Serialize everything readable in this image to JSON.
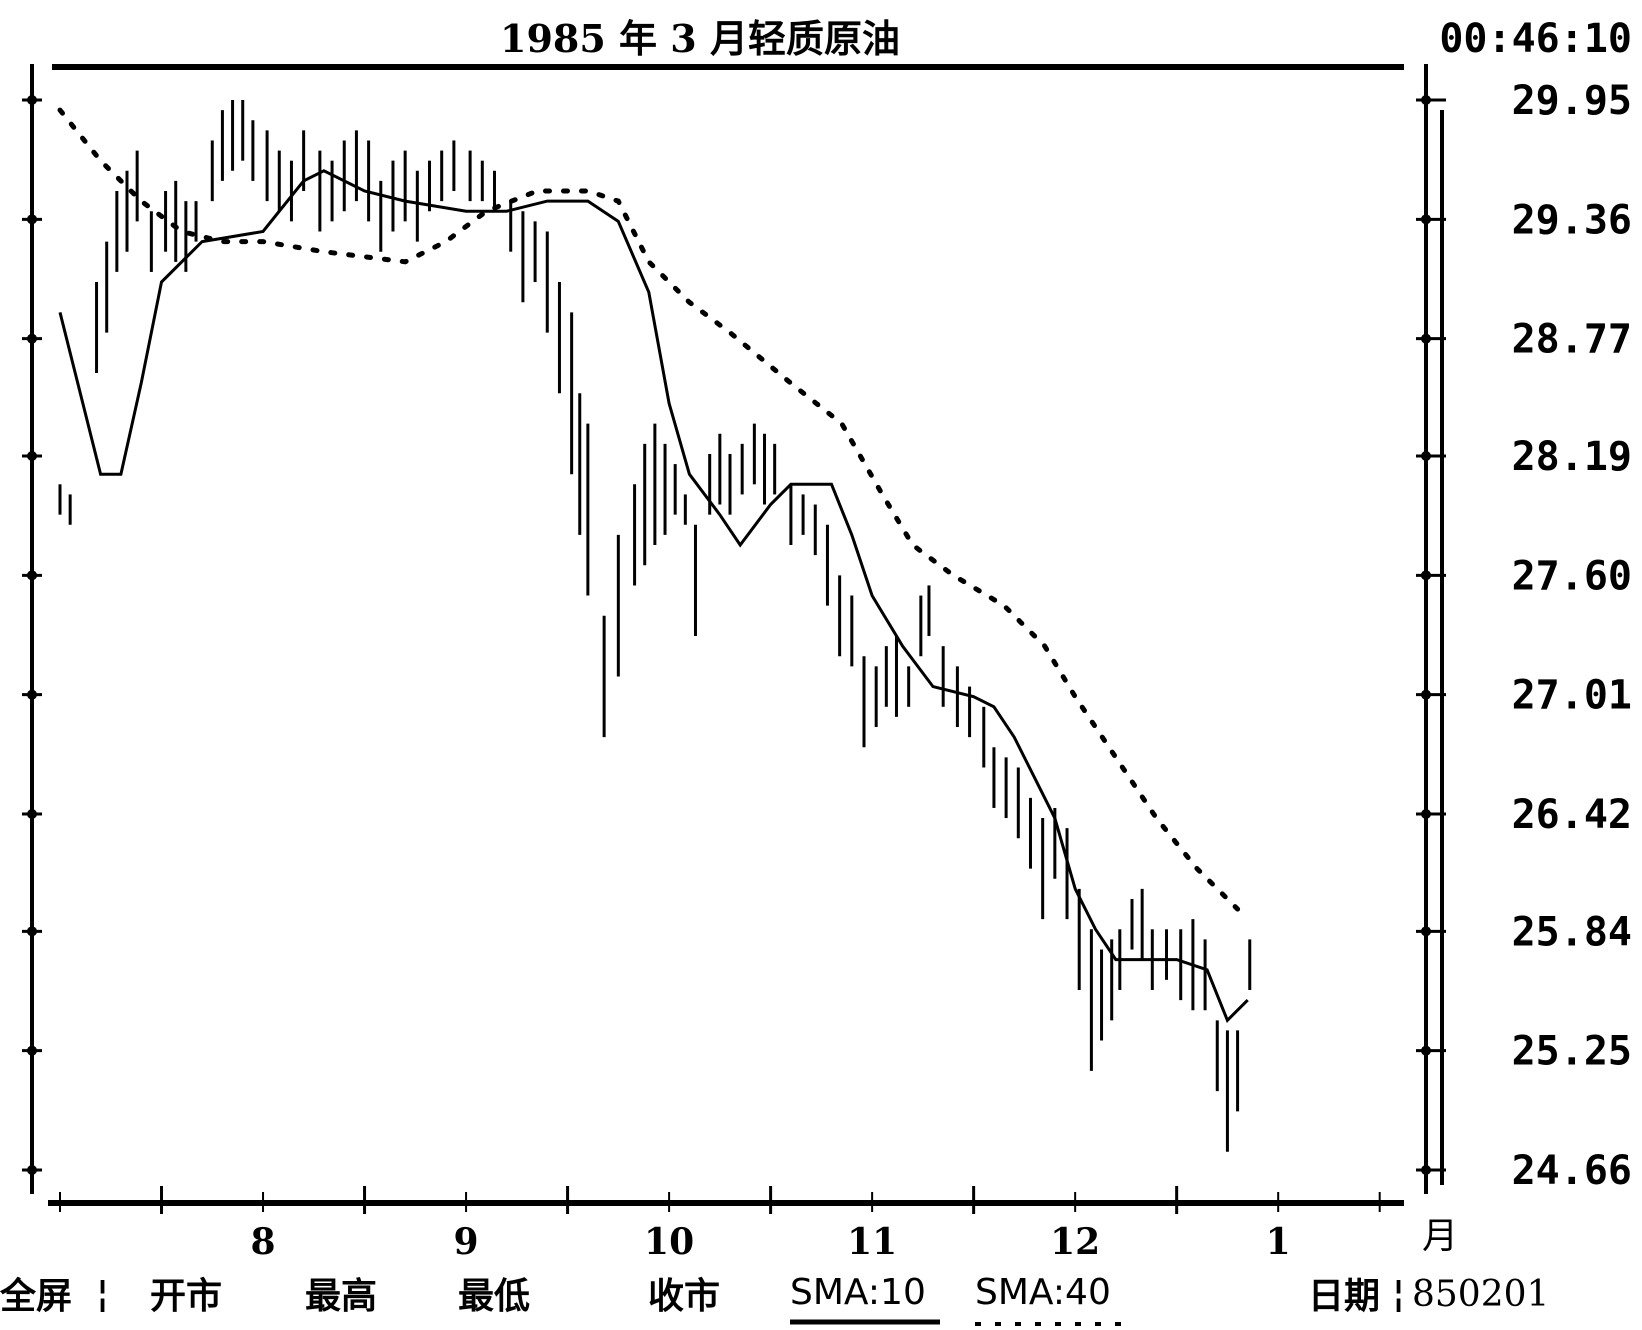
{
  "header": {
    "title": "1985 年 3 月轻质原油",
    "clock": "00:46:10"
  },
  "footer": {
    "fullscreen": "全屏",
    "separator": "¦",
    "open": "开市",
    "high": "最高",
    "low": "最低",
    "close": "收市",
    "sma10": "SMA:10",
    "sma40": "SMA:40",
    "date_label": "日期",
    "date_value": "850201"
  },
  "chart_data": {
    "type": "line",
    "title": "1985 年 3 月轻质原油",
    "x_unit": "月",
    "x_ticks": [
      "8",
      "9",
      "10",
      "11",
      "12",
      "1"
    ],
    "y_ticks": [
      "29.95",
      "29.36",
      "28.77",
      "28.19",
      "27.60",
      "27.01",
      "26.42",
      "25.84",
      "25.25",
      "24.66"
    ],
    "ylim": [
      24.66,
      29.95
    ],
    "x_range_months": [
      7.0,
      13.6
    ],
    "series": [
      {
        "name": "SMA:10",
        "style": "solid",
        "points": [
          [
            7.0,
            28.9
          ],
          [
            7.1,
            28.5
          ],
          [
            7.2,
            28.1
          ],
          [
            7.3,
            28.1
          ],
          [
            7.4,
            28.55
          ],
          [
            7.5,
            29.05
          ],
          [
            7.7,
            29.25
          ],
          [
            8.0,
            29.3
          ],
          [
            8.2,
            29.55
          ],
          [
            8.3,
            29.6
          ],
          [
            8.5,
            29.5
          ],
          [
            8.7,
            29.45
          ],
          [
            9.0,
            29.4
          ],
          [
            9.2,
            29.4
          ],
          [
            9.4,
            29.45
          ],
          [
            9.6,
            29.45
          ],
          [
            9.75,
            29.35
          ],
          [
            9.9,
            29.0
          ],
          [
            10.0,
            28.45
          ],
          [
            10.1,
            28.1
          ],
          [
            10.25,
            27.9
          ],
          [
            10.35,
            27.75
          ],
          [
            10.5,
            27.95
          ],
          [
            10.6,
            28.05
          ],
          [
            10.8,
            28.05
          ],
          [
            10.9,
            27.8
          ],
          [
            11.0,
            27.5
          ],
          [
            11.15,
            27.25
          ],
          [
            11.3,
            27.05
          ],
          [
            11.5,
            27.0
          ],
          [
            11.6,
            26.95
          ],
          [
            11.7,
            26.8
          ],
          [
            11.8,
            26.6
          ],
          [
            11.9,
            26.4
          ],
          [
            12.0,
            26.05
          ],
          [
            12.1,
            25.85
          ],
          [
            12.2,
            25.7
          ],
          [
            12.3,
            25.7
          ],
          [
            12.5,
            25.7
          ],
          [
            12.65,
            25.65
          ],
          [
            12.75,
            25.4
          ],
          [
            12.85,
            25.5
          ]
        ]
      },
      {
        "name": "SMA:40",
        "style": "dotted",
        "points": [
          [
            7.0,
            29.9
          ],
          [
            7.2,
            29.65
          ],
          [
            7.4,
            29.45
          ],
          [
            7.6,
            29.3
          ],
          [
            7.8,
            29.25
          ],
          [
            8.0,
            29.25
          ],
          [
            8.3,
            29.2
          ],
          [
            8.7,
            29.15
          ],
          [
            8.9,
            29.25
          ],
          [
            9.1,
            29.4
          ],
          [
            9.35,
            29.5
          ],
          [
            9.6,
            29.5
          ],
          [
            9.75,
            29.45
          ],
          [
            9.9,
            29.15
          ],
          [
            10.1,
            28.95
          ],
          [
            10.3,
            28.8
          ],
          [
            10.6,
            28.55
          ],
          [
            10.85,
            28.35
          ],
          [
            11.05,
            28.0
          ],
          [
            11.2,
            27.75
          ],
          [
            11.4,
            27.6
          ],
          [
            11.65,
            27.45
          ],
          [
            11.85,
            27.25
          ],
          [
            12.0,
            27.0
          ],
          [
            12.2,
            26.7
          ],
          [
            12.4,
            26.4
          ],
          [
            12.6,
            26.15
          ],
          [
            12.8,
            25.95
          ]
        ]
      }
    ],
    "bars": [
      [
        7.0,
        27.9,
        28.05
      ],
      [
        7.05,
        27.85,
        28.0
      ],
      [
        7.18,
        28.6,
        29.05
      ],
      [
        7.23,
        28.8,
        29.25
      ],
      [
        7.28,
        29.1,
        29.5
      ],
      [
        7.33,
        29.2,
        29.6
      ],
      [
        7.38,
        29.35,
        29.7
      ],
      [
        7.45,
        29.1,
        29.4
      ],
      [
        7.52,
        29.2,
        29.5
      ],
      [
        7.57,
        29.15,
        29.55
      ],
      [
        7.62,
        29.1,
        29.45
      ],
      [
        7.67,
        29.25,
        29.45
      ],
      [
        7.75,
        29.45,
        29.75
      ],
      [
        7.8,
        29.55,
        29.9
      ],
      [
        7.85,
        29.6,
        29.95
      ],
      [
        7.9,
        29.65,
        29.95
      ],
      [
        7.95,
        29.55,
        29.85
      ],
      [
        8.02,
        29.45,
        29.8
      ],
      [
        8.08,
        29.4,
        29.7
      ],
      [
        8.14,
        29.35,
        29.65
      ],
      [
        8.2,
        29.5,
        29.8
      ],
      [
        8.28,
        29.3,
        29.7
      ],
      [
        8.34,
        29.35,
        29.65
      ],
      [
        8.4,
        29.4,
        29.75
      ],
      [
        8.46,
        29.45,
        29.8
      ],
      [
        8.52,
        29.35,
        29.75
      ],
      [
        8.58,
        29.2,
        29.55
      ],
      [
        8.64,
        29.3,
        29.65
      ],
      [
        8.7,
        29.35,
        29.7
      ],
      [
        8.76,
        29.25,
        29.6
      ],
      [
        8.82,
        29.4,
        29.65
      ],
      [
        8.88,
        29.45,
        29.7
      ],
      [
        8.94,
        29.5,
        29.75
      ],
      [
        9.02,
        29.45,
        29.7
      ],
      [
        9.08,
        29.45,
        29.65
      ],
      [
        9.14,
        29.4,
        29.6
      ],
      [
        9.22,
        29.2,
        29.45
      ],
      [
        9.28,
        28.95,
        29.4
      ],
      [
        9.34,
        29.05,
        29.35
      ],
      [
        9.4,
        28.8,
        29.3
      ],
      [
        9.46,
        28.5,
        29.05
      ],
      [
        9.52,
        28.1,
        28.9
      ],
      [
        9.56,
        27.8,
        28.5
      ],
      [
        9.6,
        27.5,
        28.35
      ],
      [
        9.68,
        26.8,
        27.4
      ],
      [
        9.75,
        27.1,
        27.8
      ],
      [
        9.83,
        27.55,
        28.05
      ],
      [
        9.88,
        27.65,
        28.25
      ],
      [
        9.93,
        27.75,
        28.35
      ],
      [
        9.98,
        27.8,
        28.25
      ],
      [
        10.03,
        27.9,
        28.15
      ],
      [
        10.08,
        27.85,
        28.0
      ],
      [
        10.13,
        27.3,
        27.85
      ],
      [
        10.2,
        27.9,
        28.2
      ],
      [
        10.25,
        27.95,
        28.3
      ],
      [
        10.3,
        27.9,
        28.2
      ],
      [
        10.36,
        28.0,
        28.25
      ],
      [
        10.42,
        28.05,
        28.35
      ],
      [
        10.47,
        27.95,
        28.3
      ],
      [
        10.52,
        28.0,
        28.25
      ],
      [
        10.6,
        27.75,
        28.05
      ],
      [
        10.66,
        27.8,
        28.0
      ],
      [
        10.72,
        27.7,
        27.95
      ],
      [
        10.78,
        27.45,
        27.85
      ],
      [
        10.84,
        27.2,
        27.6
      ],
      [
        10.9,
        27.15,
        27.5
      ],
      [
        10.96,
        26.75,
        27.2
      ],
      [
        11.02,
        26.85,
        27.15
      ],
      [
        11.07,
        26.95,
        27.25
      ],
      [
        11.12,
        26.9,
        27.3
      ],
      [
        11.18,
        26.95,
        27.15
      ],
      [
        11.24,
        27.2,
        27.5
      ],
      [
        11.28,
        27.3,
        27.55
      ],
      [
        11.35,
        26.95,
        27.25
      ],
      [
        11.42,
        26.85,
        27.15
      ],
      [
        11.48,
        26.8,
        27.05
      ],
      [
        11.55,
        26.65,
        26.95
      ],
      [
        11.6,
        26.45,
        26.75
      ],
      [
        11.66,
        26.4,
        26.7
      ],
      [
        11.72,
        26.3,
        26.65
      ],
      [
        11.78,
        26.15,
        26.5
      ],
      [
        11.84,
        25.9,
        26.4
      ],
      [
        11.9,
        26.1,
        26.45
      ],
      [
        11.96,
        25.9,
        26.35
      ],
      [
        12.02,
        25.55,
        26.05
      ],
      [
        12.08,
        25.15,
        25.85
      ],
      [
        12.13,
        25.3,
        25.75
      ],
      [
        12.18,
        25.4,
        25.8
      ],
      [
        12.22,
        25.55,
        25.85
      ],
      [
        12.28,
        25.75,
        26.0
      ],
      [
        12.33,
        25.7,
        26.05
      ],
      [
        12.38,
        25.55,
        25.85
      ],
      [
        12.45,
        25.6,
        25.85
      ],
      [
        12.52,
        25.5,
        25.85
      ],
      [
        12.58,
        25.45,
        25.9
      ],
      [
        12.64,
        25.45,
        25.8
      ],
      [
        12.7,
        25.05,
        25.4
      ],
      [
        12.75,
        24.75,
        25.35
      ],
      [
        12.8,
        24.95,
        25.35
      ],
      [
        12.86,
        25.55,
        25.8
      ]
    ]
  }
}
